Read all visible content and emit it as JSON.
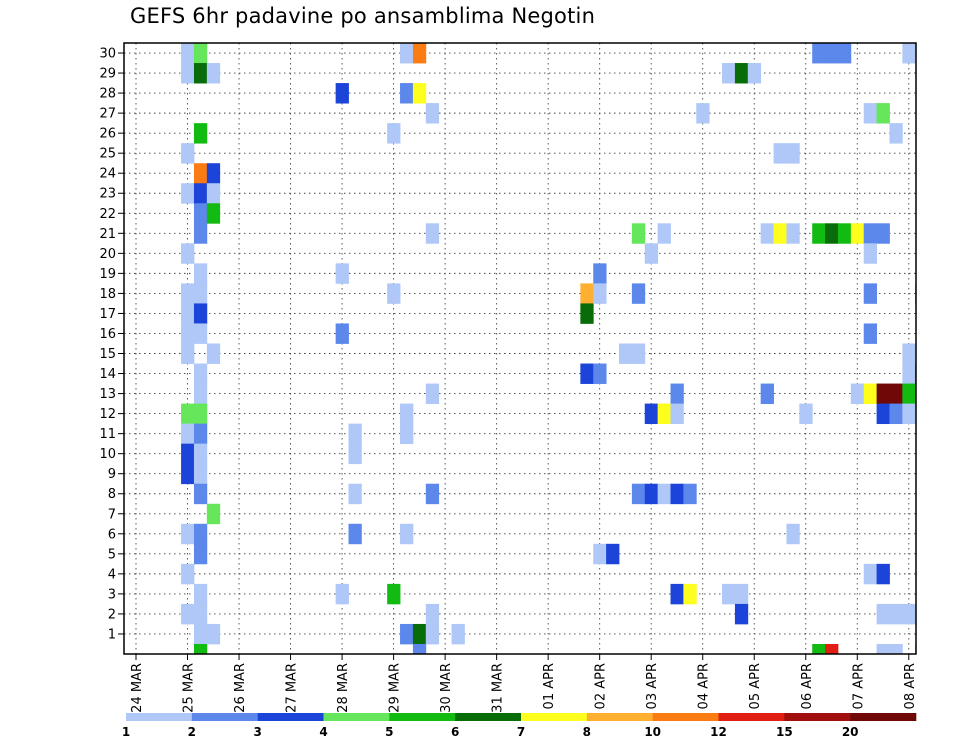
{
  "title": "GEFS 6hr padavine po ansamblima Negotin",
  "chart_data": {
    "type": "heatmap",
    "title": "GEFS 6hr padavine po ansamblima Negotin",
    "x_ticks": [
      "24 MAR",
      "25 MAR",
      "26 MAR",
      "27 MAR",
      "28 MAR",
      "29 MAR",
      "30 MAR",
      "31 MAR",
      "01 APR",
      "02 APR",
      "03 APR",
      "04 APR",
      "05 APR",
      "06 APR",
      "07 APR",
      "08 APR"
    ],
    "x_range": [
      0,
      61
    ],
    "y_ticks": [
      1,
      2,
      3,
      4,
      5,
      6,
      7,
      8,
      9,
      10,
      11,
      12,
      13,
      14,
      15,
      16,
      17,
      18,
      19,
      20,
      21,
      22,
      23,
      24,
      25,
      26,
      27,
      28,
      29,
      30
    ],
    "y_range": [
      0,
      30
    ],
    "grid": true,
    "colorbar": {
      "labels": [
        "1",
        "2",
        "3",
        "4",
        "5",
        "6",
        "7",
        "8",
        "10",
        "12",
        "15",
        "20"
      ],
      "colors": [
        "#b0c8f8",
        "#5c88ec",
        "#1c44d8",
        "#66e65a",
        "#12bb12",
        "#086c08",
        "#ffff1e",
        "#ffb030",
        "#fc7c14",
        "#e01e14",
        "#a00e0e",
        "#700808"
      ]
    },
    "cells": [
      [
        4,
        30,
        0
      ],
      [
        4,
        29,
        0
      ],
      [
        4,
        25,
        0
      ],
      [
        4,
        23,
        0
      ],
      [
        4,
        20,
        0
      ],
      [
        4,
        18,
        0
      ],
      [
        4,
        17,
        0
      ],
      [
        4,
        16,
        0
      ],
      [
        4,
        15,
        0
      ],
      [
        4,
        12,
        3
      ],
      [
        4,
        11,
        0
      ],
      [
        4,
        10,
        2
      ],
      [
        4,
        9,
        2
      ],
      [
        4,
        6,
        0
      ],
      [
        4,
        4,
        0
      ],
      [
        4,
        2,
        0
      ],
      [
        5,
        30,
        3
      ],
      [
        5,
        29,
        5
      ],
      [
        5,
        26,
        4
      ],
      [
        5,
        24,
        8
      ],
      [
        5,
        23,
        2
      ],
      [
        5,
        22,
        1
      ],
      [
        5,
        21,
        1
      ],
      [
        5,
        19,
        0
      ],
      [
        5,
        18,
        0
      ],
      [
        5,
        17,
        2
      ],
      [
        5,
        16,
        0
      ],
      [
        5,
        14,
        0
      ],
      [
        5,
        13,
        0
      ],
      [
        5,
        12,
        3
      ],
      [
        5,
        11,
        1
      ],
      [
        5,
        10,
        0
      ],
      [
        5,
        9,
        0
      ],
      [
        5,
        8,
        1
      ],
      [
        5,
        6,
        1
      ],
      [
        5,
        5,
        1
      ],
      [
        5,
        3,
        0
      ],
      [
        5,
        2,
        0
      ],
      [
        5,
        1,
        0
      ],
      [
        5,
        0,
        4
      ],
      [
        6,
        29,
        0
      ],
      [
        6,
        24,
        2
      ],
      [
        6,
        23,
        0
      ],
      [
        6,
        22,
        4
      ],
      [
        6,
        15,
        0
      ],
      [
        6,
        7,
        3
      ],
      [
        6,
        1,
        0
      ],
      [
        16,
        28,
        2
      ],
      [
        16,
        19,
        0
      ],
      [
        16,
        16,
        1
      ],
      [
        16,
        3,
        0
      ],
      [
        17,
        11,
        0
      ],
      [
        17,
        10,
        0
      ],
      [
        17,
        8,
        0
      ],
      [
        17,
        6,
        1
      ],
      [
        20,
        26,
        0
      ],
      [
        20,
        18,
        0
      ],
      [
        20,
        3,
        4
      ],
      [
        21,
        30,
        0
      ],
      [
        21,
        28,
        1
      ],
      [
        21,
        12,
        0
      ],
      [
        21,
        11,
        0
      ],
      [
        21,
        6,
        0
      ],
      [
        21,
        1,
        1
      ],
      [
        22,
        30,
        8
      ],
      [
        22,
        28,
        6
      ],
      [
        22,
        1,
        5
      ],
      [
        22,
        0,
        1
      ],
      [
        23,
        27,
        0
      ],
      [
        23,
        21,
        0
      ],
      [
        23,
        13,
        0
      ],
      [
        23,
        8,
        1
      ],
      [
        23,
        2,
        0
      ],
      [
        23,
        1,
        0
      ],
      [
        25,
        1,
        0
      ],
      [
        35,
        18,
        7
      ],
      [
        35,
        17,
        5
      ],
      [
        35,
        14,
        2
      ],
      [
        36,
        19,
        1
      ],
      [
        36,
        18,
        0
      ],
      [
        36,
        14,
        1
      ],
      [
        36,
        5,
        0
      ],
      [
        37,
        5,
        2
      ],
      [
        38,
        15,
        0
      ],
      [
        39,
        21,
        3
      ],
      [
        39,
        18,
        1
      ],
      [
        39,
        15,
        0
      ],
      [
        39,
        8,
        1
      ],
      [
        40,
        20,
        0
      ],
      [
        40,
        12,
        2
      ],
      [
        40,
        8,
        2
      ],
      [
        41,
        21,
        0
      ],
      [
        41,
        12,
        6
      ],
      [
        41,
        8,
        0
      ],
      [
        42,
        13,
        1
      ],
      [
        42,
        12,
        0
      ],
      [
        42,
        8,
        2
      ],
      [
        42,
        3,
        2
      ],
      [
        43,
        8,
        1
      ],
      [
        43,
        3,
        6
      ],
      [
        44,
        27,
        0
      ],
      [
        46,
        29,
        0
      ],
      [
        46,
        3,
        0
      ],
      [
        47,
        29,
        5
      ],
      [
        47,
        3,
        0
      ],
      [
        47,
        2,
        2
      ],
      [
        48,
        29,
        0
      ],
      [
        49,
        21,
        0
      ],
      [
        49,
        13,
        1
      ],
      [
        50,
        25,
        0
      ],
      [
        50,
        21,
        6
      ],
      [
        51,
        25,
        0
      ],
      [
        51,
        21,
        0
      ],
      [
        51,
        6,
        0
      ],
      [
        52,
        12,
        0
      ],
      [
        53,
        30,
        1
      ],
      [
        53,
        21,
        4
      ],
      [
        53,
        0,
        4
      ],
      [
        54,
        30,
        1
      ],
      [
        54,
        21,
        5
      ],
      [
        54,
        0,
        9
      ],
      [
        55,
        30,
        1
      ],
      [
        55,
        21,
        4
      ],
      [
        56,
        21,
        6
      ],
      [
        56,
        13,
        0
      ],
      [
        57,
        27,
        0
      ],
      [
        57,
        21,
        1
      ],
      [
        57,
        20,
        0
      ],
      [
        57,
        18,
        1
      ],
      [
        57,
        16,
        1
      ],
      [
        57,
        13,
        6
      ],
      [
        57,
        4,
        0
      ],
      [
        58,
        27,
        3
      ],
      [
        58,
        21,
        1
      ],
      [
        58,
        13,
        11
      ],
      [
        58,
        12,
        2
      ],
      [
        58,
        4,
        2
      ],
      [
        58,
        2,
        0
      ],
      [
        58,
        0,
        0
      ],
      [
        59,
        26,
        0
      ],
      [
        59,
        13,
        11
      ],
      [
        59,
        12,
        1
      ],
      [
        59,
        2,
        0
      ],
      [
        59,
        0,
        0
      ],
      [
        60,
        30,
        0
      ],
      [
        60,
        15,
        0
      ],
      [
        60,
        14,
        0
      ],
      [
        60,
        13,
        4
      ],
      [
        60,
        12,
        0
      ],
      [
        60,
        2,
        0
      ],
      [
        61,
        18,
        1
      ],
      [
        61,
        14,
        5
      ],
      [
        61,
        0,
        1
      ],
      [
        62,
        18,
        0
      ],
      [
        62,
        14,
        3
      ]
    ]
  }
}
